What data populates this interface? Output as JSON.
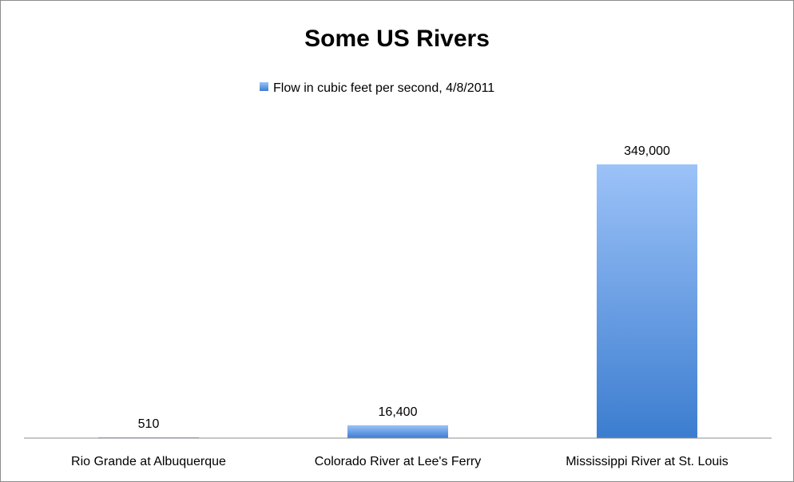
{
  "chart_data": {
    "type": "bar",
    "title": "Some US Rivers",
    "categories": [
      "Rio Grande at Albuquerque",
      "Colorado River at Lee's Ferry",
      "Mississippi River at St. Louis"
    ],
    "series": [
      {
        "name": "Flow in cubic feet per second, 4/8/2011",
        "values": [
          510,
          16400,
          349000
        ],
        "data_labels": [
          "510",
          "16,400",
          "349,000"
        ]
      }
    ],
    "ylim": [
      0,
      349000
    ],
    "grid": false,
    "legend_position": "top",
    "colors": {
      "bar_top": "#9cc2f8",
      "bar_bottom": "#3c7dd0",
      "axis": "#8c8c8c"
    }
  }
}
